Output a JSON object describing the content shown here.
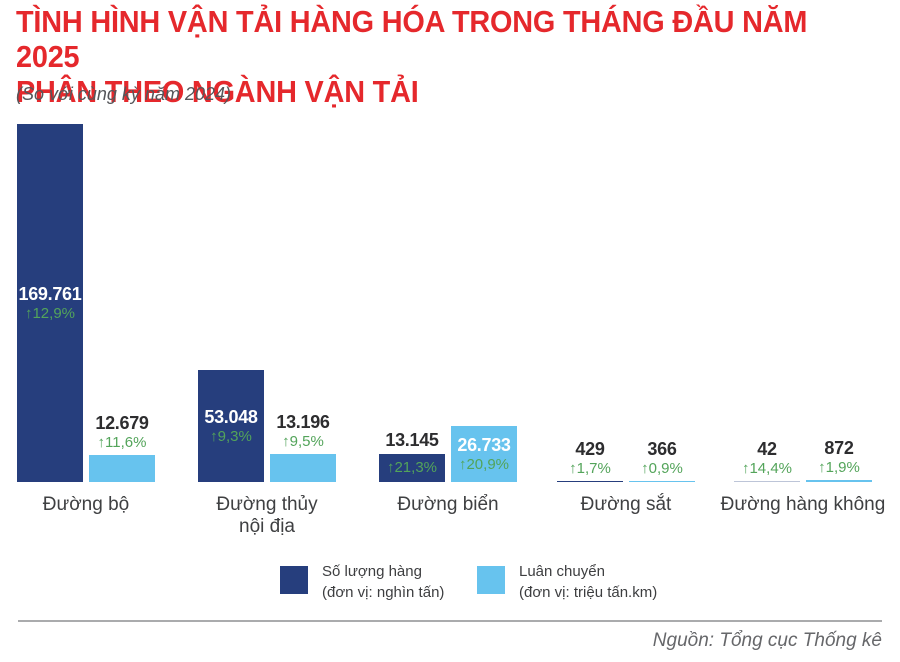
{
  "header": {
    "title": "TÌNH HÌNH VẬN TẢI HÀNG HÓA TRONG THÁNG ĐẦU NĂM 2025\nPHÂN THEO NGÀNH VẬN TẢI",
    "subtitle": "(So với cùng kỳ năm 2024)"
  },
  "colors": {
    "title_red": "#e5282c",
    "navy": "#263e7d",
    "light_blue": "#67c3ee",
    "green": "#53a45a",
    "value_dark": "#2d2d2f",
    "label_gray": "#3f4042",
    "footer_gray": "#66676a",
    "divider_gray": "#aaabad"
  },
  "chart_data": {
    "type": "bar",
    "title": "Tình hình vận tải hàng hóa trong tháng đầu năm 2025 phân theo ngành vận tải (so với cùng kỳ năm 2024)",
    "legend_position": "bottom",
    "grid": false,
    "series_names": [
      "Số lượng hàng (đơn vị: nghìn tấn)",
      "Luân chuyển (đơn vị: triệu tấn.km)"
    ],
    "ylim": [
      0,
      169761
    ],
    "groups": [
      {
        "category": "Đường bộ",
        "category_display": "Đường bộ",
        "bars": [
          {
            "series": "Số lượng hàng",
            "value": 169761,
            "display": "169.761",
            "change_pct": "↑12,9%",
            "labels": "inside"
          },
          {
            "series": "Luân chuyển",
            "value": 12679,
            "display": "12.679",
            "change_pct": "↑11,6%",
            "labels": "above"
          }
        ]
      },
      {
        "category": "Đường thủy nội địa",
        "category_display": "Đường thủy\nnội địa",
        "bars": [
          {
            "series": "Số lượng hàng",
            "value": 53048,
            "display": "53.048",
            "change_pct": "↑9,3%",
            "labels": "inside"
          },
          {
            "series": "Luân chuyển",
            "value": 13196,
            "display": "13.196",
            "change_pct": "↑9,5%",
            "labels": "above"
          }
        ]
      },
      {
        "category": "Đường biển",
        "category_display": "Đường biển",
        "bars": [
          {
            "series": "Số lượng hàng",
            "value": 13145,
            "display": "13.145",
            "change_pct": "↑21,3%",
            "labels": "split"
          },
          {
            "series": "Luân chuyển",
            "value": 26733,
            "display": "26.733",
            "change_pct": "↑20,9%",
            "labels": "inside"
          }
        ]
      },
      {
        "category": "Đường sắt",
        "category_display": "Đường sắt",
        "bars": [
          {
            "series": "Số lượng hàng",
            "value": 429,
            "display": "429",
            "change_pct": "↑1,7%",
            "labels": "above"
          },
          {
            "series": "Luân chuyển",
            "value": 366,
            "display": "366",
            "change_pct": "↑0,9%",
            "labels": "above"
          }
        ]
      },
      {
        "category": "Đường hàng không",
        "category_display": "Đường hàng không",
        "bars": [
          {
            "series": "Số lượng hàng",
            "value": 42,
            "display": "42",
            "change_pct": "↑14,4%",
            "labels": "above"
          },
          {
            "series": "Luân chuyển",
            "value": 872,
            "display": "872",
            "change_pct": "↑1,9%",
            "labels": "above"
          }
        ]
      }
    ]
  },
  "legend": {
    "items": [
      {
        "swatch": "navy",
        "name": "Số lượng hàng",
        "unit": "(đơn vị: nghìn tấn)"
      },
      {
        "swatch": "light_blue",
        "name": "Luân chuyển",
        "unit": "(đơn vị: triệu tấn.km)"
      }
    ]
  },
  "footer": {
    "source": "Nguồn: Tổng cục Thống kê"
  }
}
